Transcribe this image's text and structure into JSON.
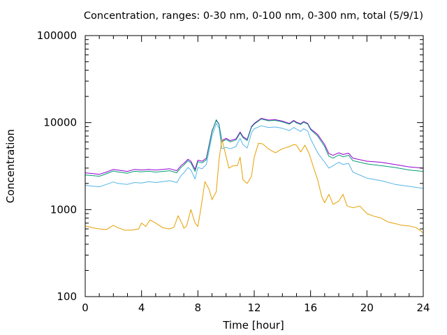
{
  "chart_data": {
    "type": "line",
    "title": "Concentration, ranges: 0-30 nm, 0-100 nm, 0-300 nm, total (5/9/1)",
    "xlabel": "Time [hour]",
    "ylabel": "Concentration",
    "xlim": [
      0,
      24
    ],
    "ylim": [
      100,
      100000
    ],
    "yscale": "log",
    "grid": false,
    "legend": "none",
    "x_ticks": [
      0,
      4,
      8,
      12,
      16,
      20,
      24
    ],
    "x_tick_labels": [
      "0",
      "4",
      "8",
      "12",
      "16",
      "20",
      "24"
    ],
    "y_ticks": [
      100,
      1000,
      10000,
      100000
    ],
    "y_tick_labels": [
      "100",
      "1000",
      "10000",
      "100000"
    ],
    "series": [
      {
        "color": "#9400d3",
        "x": [
          0,
          1,
          1.5,
          2,
          2.3,
          3,
          3.5,
          4,
          4.5,
          5,
          5.5,
          6,
          6.5,
          6.8,
          7,
          7.3,
          7.5,
          7.8,
          8,
          8.3,
          8.6,
          9,
          9.3,
          9.5,
          9.7,
          10,
          10.3,
          10.7,
          11,
          11.2,
          11.5,
          11.8,
          12,
          12.5,
          13,
          13.5,
          14,
          14.5,
          14.8,
          15,
          15.3,
          15.5,
          15.8,
          16,
          16.5,
          17,
          17.3,
          17.6,
          18,
          18.3,
          18.7,
          19,
          20,
          21,
          22,
          23,
          24
        ],
        "y": [
          2650,
          2550,
          2700,
          2900,
          2850,
          2750,
          2900,
          2850,
          2900,
          2850,
          2900,
          2950,
          2800,
          3200,
          3400,
          3800,
          3600,
          2900,
          3700,
          3600,
          3900,
          8000,
          10600,
          9500,
          6200,
          6600,
          6200,
          6500,
          7800,
          6900,
          6400,
          9000,
          9800,
          11200,
          10700,
          10800,
          10400,
          9800,
          10600,
          10100,
          9700,
          10300,
          9800,
          8500,
          7300,
          5600,
          4400,
          4200,
          4500,
          4300,
          4450,
          3900,
          3600,
          3500,
          3300,
          3100,
          3000
        ]
      },
      {
        "color": "#009e73",
        "x": [
          0,
          1,
          1.5,
          2,
          2.3,
          3,
          3.5,
          4,
          4.5,
          5,
          5.5,
          6,
          6.5,
          6.8,
          7,
          7.3,
          7.5,
          7.8,
          8,
          8.3,
          8.6,
          9,
          9.3,
          9.5,
          9.7,
          10,
          10.3,
          10.7,
          11,
          11.2,
          11.5,
          11.8,
          12,
          12.5,
          13,
          13.5,
          14,
          14.5,
          14.8,
          15,
          15.3,
          15.5,
          15.8,
          16,
          16.5,
          17,
          17.3,
          17.6,
          18,
          18.3,
          18.7,
          19,
          20,
          21,
          22,
          23,
          24
        ],
        "y": [
          2500,
          2420,
          2580,
          2780,
          2720,
          2620,
          2760,
          2720,
          2770,
          2700,
          2750,
          2800,
          2650,
          3050,
          3250,
          3650,
          3450,
          2750,
          3550,
          3450,
          3750,
          7800,
          10800,
          9600,
          6000,
          6400,
          6000,
          6300,
          7600,
          6700,
          6200,
          8800,
          9600,
          11000,
          10500,
          10600,
          10200,
          9600,
          10400,
          9900,
          9500,
          10100,
          9600,
          8300,
          7000,
          5300,
          4100,
          3900,
          4250,
          4050,
          4200,
          3650,
          3350,
          3200,
          3050,
          2850,
          2750
        ]
      },
      {
        "color": "#56b4e9",
        "x": [
          0,
          1,
          1.5,
          2,
          2.3,
          3,
          3.5,
          4,
          4.5,
          5,
          5.5,
          6,
          6.5,
          6.8,
          7,
          7.3,
          7.5,
          7.8,
          8,
          8.3,
          8.6,
          9,
          9.3,
          9.5,
          9.7,
          10,
          10.3,
          10.7,
          11,
          11.2,
          11.5,
          11.8,
          12,
          12.5,
          13,
          13.5,
          14,
          14.5,
          14.8,
          15,
          15.3,
          15.5,
          15.8,
          16,
          16.5,
          17,
          17.3,
          17.6,
          18,
          18.3,
          18.7,
          19,
          20,
          21,
          22,
          23,
          24
        ],
        "y": [
          1900,
          1830,
          1950,
          2080,
          2000,
          1950,
          2050,
          2020,
          2100,
          2050,
          2100,
          2150,
          2050,
          2450,
          2650,
          3050,
          2850,
          2250,
          3050,
          2950,
          3300,
          7000,
          9800,
          8700,
          5000,
          5200,
          5000,
          5300,
          6600,
          5600,
          5100,
          7600,
          8500,
          9200,
          8800,
          8900,
          8600,
          8100,
          8800,
          8400,
          7900,
          8500,
          8000,
          6500,
          4500,
          3500,
          3000,
          3200,
          3500,
          3300,
          3400,
          2700,
          2300,
          2150,
          1950,
          1850,
          1750
        ]
      },
      {
        "color": "#e69f00",
        "x": [
          0,
          0.5,
          1,
          1.5,
          2,
          2.3,
          2.8,
          3.3,
          3.8,
          4,
          4.3,
          4.6,
          5,
          5.5,
          6,
          6.3,
          6.6,
          6.9,
          7,
          7.2,
          7.5,
          7.8,
          8,
          8.2,
          8.5,
          8.8,
          9,
          9.3,
          9.5,
          9.7,
          9.9,
          10.2,
          10.5,
          10.8,
          11,
          11.2,
          11.5,
          11.8,
          12,
          12.3,
          12.6,
          13,
          13.5,
          14,
          14.5,
          14.8,
          15,
          15.3,
          15.6,
          15.9,
          16.2,
          16.5,
          16.8,
          17,
          17.3,
          17.6,
          18,
          18.3,
          18.6,
          19,
          19.5,
          20,
          20.5,
          21,
          21.5,
          22,
          22.5,
          23,
          23.5,
          24
        ],
        "y": [
          650,
          620,
          600,
          590,
          660,
          620,
          580,
          580,
          600,
          700,
          640,
          760,
          700,
          620,
          600,
          630,
          850,
          680,
          610,
          650,
          1000,
          700,
          640,
          1000,
          2100,
          1700,
          1300,
          1600,
          3700,
          6500,
          4800,
          3000,
          3200,
          3200,
          4000,
          2200,
          2000,
          2400,
          4000,
          5800,
          5700,
          5000,
          4500,
          5000,
          5300,
          5600,
          5500,
          4600,
          5500,
          4400,
          3100,
          2200,
          1400,
          1200,
          1500,
          1150,
          1250,
          1500,
          1100,
          1050,
          1100,
          900,
          840,
          800,
          720,
          690,
          660,
          650,
          620,
          540
        ]
      }
    ]
  }
}
